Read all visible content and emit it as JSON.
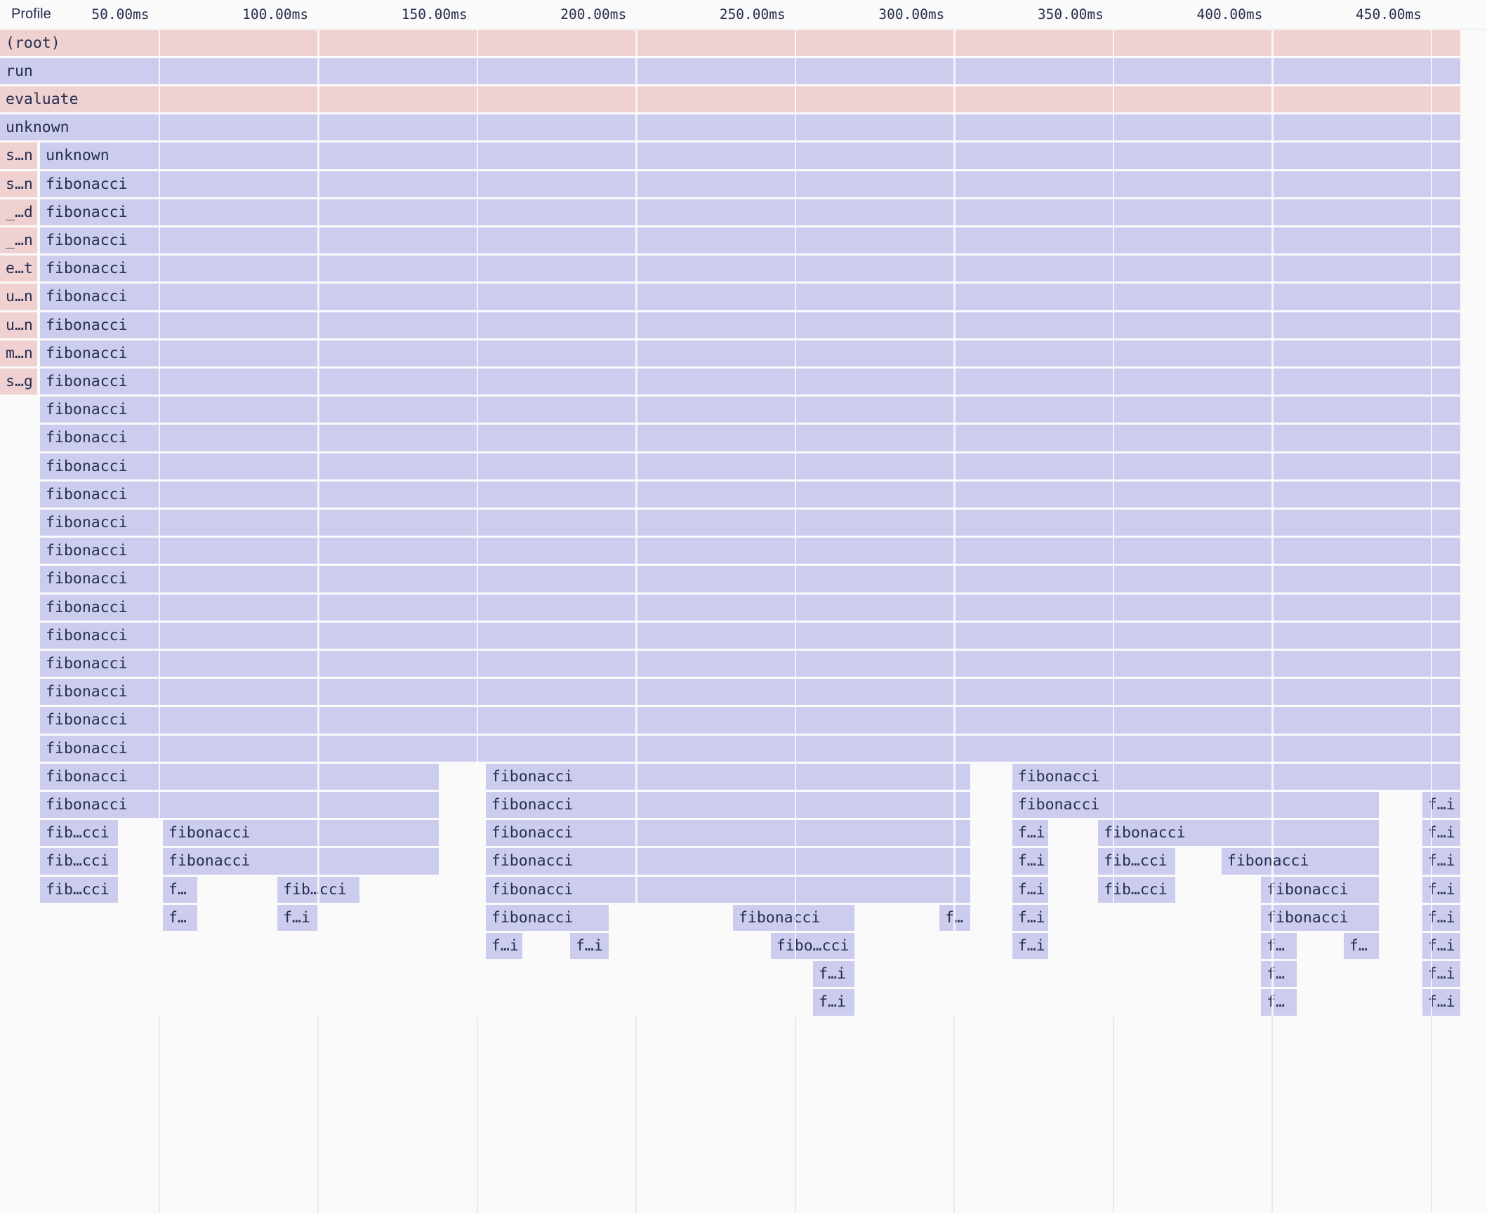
{
  "header": {
    "profile_label": "Profile",
    "axis": {
      "unit": "ms",
      "tick_interval_ms": 50,
      "ticks": [
        {
          "ms": 50,
          "label": "50.00ms"
        },
        {
          "ms": 100,
          "label": "100.00ms"
        },
        {
          "ms": 150,
          "label": "150.00ms"
        },
        {
          "ms": 200,
          "label": "200.00ms"
        },
        {
          "ms": 250,
          "label": "250.00ms"
        },
        {
          "ms": 300,
          "label": "300.00ms"
        },
        {
          "ms": 350,
          "label": "350.00ms"
        },
        {
          "ms": 400,
          "label": "400.00ms"
        },
        {
          "ms": 450,
          "label": "450.00ms"
        }
      ]
    }
  },
  "flame": {
    "total_ms": 459.5,
    "colors": {
      "p": "#f0d1d1",
      "l": "#cbccee"
    },
    "rows": [
      {
        "frames": [
          {
            "s": 0,
            "e": 459.5,
            "t": "(root)",
            "c": "p"
          }
        ]
      },
      {
        "frames": [
          {
            "s": 0,
            "e": 459.5,
            "t": "run",
            "c": "l"
          }
        ]
      },
      {
        "frames": [
          {
            "s": 0,
            "e": 459.5,
            "t": "evaluate",
            "c": "p"
          }
        ]
      },
      {
        "frames": [
          {
            "s": 0,
            "e": 459.5,
            "t": "unknown",
            "c": "l"
          }
        ]
      },
      {
        "frames": [
          {
            "s": 0,
            "e": 12.1,
            "t": "s…n",
            "c": "p"
          },
          {
            "s": 12.6,
            "e": 459.5,
            "t": "unknown",
            "c": "l"
          }
        ]
      },
      {
        "frames": [
          {
            "s": 0,
            "e": 12.1,
            "t": "s…n",
            "c": "p"
          },
          {
            "s": 12.6,
            "e": 459.5,
            "t": "fibonacci",
            "c": "l"
          }
        ]
      },
      {
        "frames": [
          {
            "s": 0,
            "e": 12.1,
            "t": "_…d",
            "c": "p"
          },
          {
            "s": 12.6,
            "e": 459.5,
            "t": "fibonacci",
            "c": "l"
          }
        ]
      },
      {
        "frames": [
          {
            "s": 0,
            "e": 12.1,
            "t": "_…n",
            "c": "p"
          },
          {
            "s": 12.6,
            "e": 459.5,
            "t": "fibonacci",
            "c": "l"
          }
        ]
      },
      {
        "frames": [
          {
            "s": 0,
            "e": 12.1,
            "t": "e…t",
            "c": "p"
          },
          {
            "s": 12.6,
            "e": 459.5,
            "t": "fibonacci",
            "c": "l"
          }
        ]
      },
      {
        "frames": [
          {
            "s": 0,
            "e": 12.1,
            "t": "u…n",
            "c": "p"
          },
          {
            "s": 12.6,
            "e": 459.5,
            "t": "fibonacci",
            "c": "l"
          }
        ]
      },
      {
        "frames": [
          {
            "s": 0,
            "e": 12.1,
            "t": "u…n",
            "c": "p"
          },
          {
            "s": 12.6,
            "e": 459.5,
            "t": "fibonacci",
            "c": "l"
          }
        ]
      },
      {
        "frames": [
          {
            "s": 0,
            "e": 12.1,
            "t": "m…n",
            "c": "p"
          },
          {
            "s": 12.6,
            "e": 459.5,
            "t": "fibonacci",
            "c": "l"
          }
        ]
      },
      {
        "frames": [
          {
            "s": 0,
            "e": 12.1,
            "t": "s…g",
            "c": "p"
          },
          {
            "s": 12.6,
            "e": 459.5,
            "t": "fibonacci",
            "c": "l"
          }
        ]
      },
      {
        "frames": [
          {
            "s": 12.6,
            "e": 459.5,
            "t": "fibonacci",
            "c": "l"
          }
        ]
      },
      {
        "frames": [
          {
            "s": 12.6,
            "e": 459.5,
            "t": "fibonacci",
            "c": "l"
          }
        ]
      },
      {
        "frames": [
          {
            "s": 12.6,
            "e": 459.5,
            "t": "fibonacci",
            "c": "l"
          }
        ]
      },
      {
        "frames": [
          {
            "s": 12.6,
            "e": 459.5,
            "t": "fibonacci",
            "c": "l"
          }
        ]
      },
      {
        "frames": [
          {
            "s": 12.6,
            "e": 459.5,
            "t": "fibonacci",
            "c": "l"
          }
        ]
      },
      {
        "frames": [
          {
            "s": 12.6,
            "e": 459.5,
            "t": "fibonacci",
            "c": "l"
          }
        ]
      },
      {
        "frames": [
          {
            "s": 12.6,
            "e": 459.5,
            "t": "fibonacci",
            "c": "l"
          }
        ]
      },
      {
        "frames": [
          {
            "s": 12.6,
            "e": 459.5,
            "t": "fibonacci",
            "c": "l"
          }
        ]
      },
      {
        "frames": [
          {
            "s": 12.6,
            "e": 459.5,
            "t": "fibonacci",
            "c": "l"
          }
        ]
      },
      {
        "frames": [
          {
            "s": 12.6,
            "e": 459.5,
            "t": "fibonacci",
            "c": "l"
          }
        ]
      },
      {
        "frames": [
          {
            "s": 12.6,
            "e": 459.5,
            "t": "fibonacci",
            "c": "l"
          }
        ]
      },
      {
        "frames": [
          {
            "s": 12.6,
            "e": 459.5,
            "t": "fibonacci",
            "c": "l"
          }
        ]
      },
      {
        "frames": [
          {
            "s": 12.6,
            "e": 459.5,
            "t": "fibonacci",
            "c": "l"
          }
        ]
      },
      {
        "frames": [
          {
            "s": 12.6,
            "e": 138.4,
            "t": "fibonacci",
            "c": "l"
          },
          {
            "s": 152.7,
            "e": 305.4,
            "t": "fibonacci",
            "c": "l"
          },
          {
            "s": 318.2,
            "e": 459.5,
            "t": "fibonacci",
            "c": "l"
          }
        ]
      },
      {
        "frames": [
          {
            "s": 12.6,
            "e": 138.4,
            "t": "fibonacci",
            "c": "l"
          },
          {
            "s": 152.7,
            "e": 305.4,
            "t": "fibonacci",
            "c": "l"
          },
          {
            "s": 318.2,
            "e": 433.9,
            "t": "fibonacci",
            "c": "l"
          },
          {
            "s": 447.1,
            "e": 459.5,
            "t": "f…i",
            "c": "l"
          }
        ]
      },
      {
        "frames": [
          {
            "s": 12.6,
            "e": 37.5,
            "t": "fib…cci",
            "c": "l"
          },
          {
            "s": 51.2,
            "e": 138.4,
            "t": "fibonacci",
            "c": "l"
          },
          {
            "s": 152.7,
            "e": 305.4,
            "t": "fibonacci",
            "c": "l"
          },
          {
            "s": 318.2,
            "e": 330,
            "t": "f…i",
            "c": "l"
          },
          {
            "s": 345.2,
            "e": 433.9,
            "t": "fibonacci",
            "c": "l"
          },
          {
            "s": 447.1,
            "e": 459.5,
            "t": "f…i",
            "c": "l"
          }
        ]
      },
      {
        "frames": [
          {
            "s": 12.6,
            "e": 37.5,
            "t": "fib…cci",
            "c": "l"
          },
          {
            "s": 51.2,
            "e": 138.4,
            "t": "fibonacci",
            "c": "l"
          },
          {
            "s": 152.7,
            "e": 305.4,
            "t": "fibonacci",
            "c": "l"
          },
          {
            "s": 318.2,
            "e": 330,
            "t": "f…i",
            "c": "l"
          },
          {
            "s": 345.2,
            "e": 369.9,
            "t": "fib…cci",
            "c": "l"
          },
          {
            "s": 384,
            "e": 433.9,
            "t": "fibonacci",
            "c": "l"
          },
          {
            "s": 447.1,
            "e": 459.5,
            "t": "f…i",
            "c": "l"
          }
        ]
      },
      {
        "frames": [
          {
            "s": 12.6,
            "e": 37.5,
            "t": "fib…cci",
            "c": "l"
          },
          {
            "s": 51.2,
            "e": 62.5,
            "t": "f…",
            "c": "l"
          },
          {
            "s": 87.2,
            "e": 113.4,
            "t": "fib…cci",
            "c": "l"
          },
          {
            "s": 152.7,
            "e": 305.4,
            "t": "fibonacci",
            "c": "l"
          },
          {
            "s": 318.2,
            "e": 330,
            "t": "f…i",
            "c": "l"
          },
          {
            "s": 345.2,
            "e": 369.9,
            "t": "fib…cci",
            "c": "l"
          },
          {
            "s": 396.4,
            "e": 433.9,
            "t": "fibonacci",
            "c": "l"
          },
          {
            "s": 447.1,
            "e": 459.5,
            "t": "f…i",
            "c": "l"
          }
        ]
      },
      {
        "frames": [
          {
            "s": 51.2,
            "e": 62.5,
            "t": "f…",
            "c": "l"
          },
          {
            "s": 87.2,
            "e": 100.6,
            "t": "f…i",
            "c": "l"
          },
          {
            "s": 152.7,
            "e": 191.8,
            "t": "fibonacci",
            "c": "l"
          },
          {
            "s": 230.4,
            "e": 269,
            "t": "fibonacci",
            "c": "l"
          },
          {
            "s": 295.3,
            "e": 305.4,
            "t": "f…",
            "c": "l"
          },
          {
            "s": 318.2,
            "e": 330,
            "t": "f…i",
            "c": "l"
          },
          {
            "s": 396.4,
            "e": 433.9,
            "t": "fibonacci",
            "c": "l"
          },
          {
            "s": 447.1,
            "e": 459.5,
            "t": "f…i",
            "c": "l"
          }
        ]
      },
      {
        "frames": [
          {
            "s": 152.7,
            "e": 164.6,
            "t": "f…i",
            "c": "l"
          },
          {
            "s": 179.2,
            "e": 191.8,
            "t": "f…i",
            "c": "l"
          },
          {
            "s": 242.3,
            "e": 269,
            "t": "fibo…cci",
            "c": "l"
          },
          {
            "s": 318.2,
            "e": 330,
            "t": "f…i",
            "c": "l"
          },
          {
            "s": 396.4,
            "e": 408.1,
            "t": "f…",
            "c": "l"
          },
          {
            "s": 422.4,
            "e": 433.9,
            "t": "f…",
            "c": "l"
          },
          {
            "s": 447.1,
            "e": 459.5,
            "t": "f…i",
            "c": "l"
          }
        ]
      },
      {
        "frames": [
          {
            "s": 255.6,
            "e": 269,
            "t": "f…i",
            "c": "l"
          },
          {
            "s": 396.4,
            "e": 408.1,
            "t": "f…",
            "c": "l"
          },
          {
            "s": 447.1,
            "e": 459.5,
            "t": "f…i",
            "c": "l"
          }
        ]
      },
      {
        "frames": [
          {
            "s": 255.6,
            "e": 269,
            "t": "f…i",
            "c": "l"
          },
          {
            "s": 396.4,
            "e": 408.1,
            "t": "f…",
            "c": "l"
          },
          {
            "s": 447.1,
            "e": 459.5,
            "t": "f…i",
            "c": "l"
          }
        ]
      }
    ]
  }
}
